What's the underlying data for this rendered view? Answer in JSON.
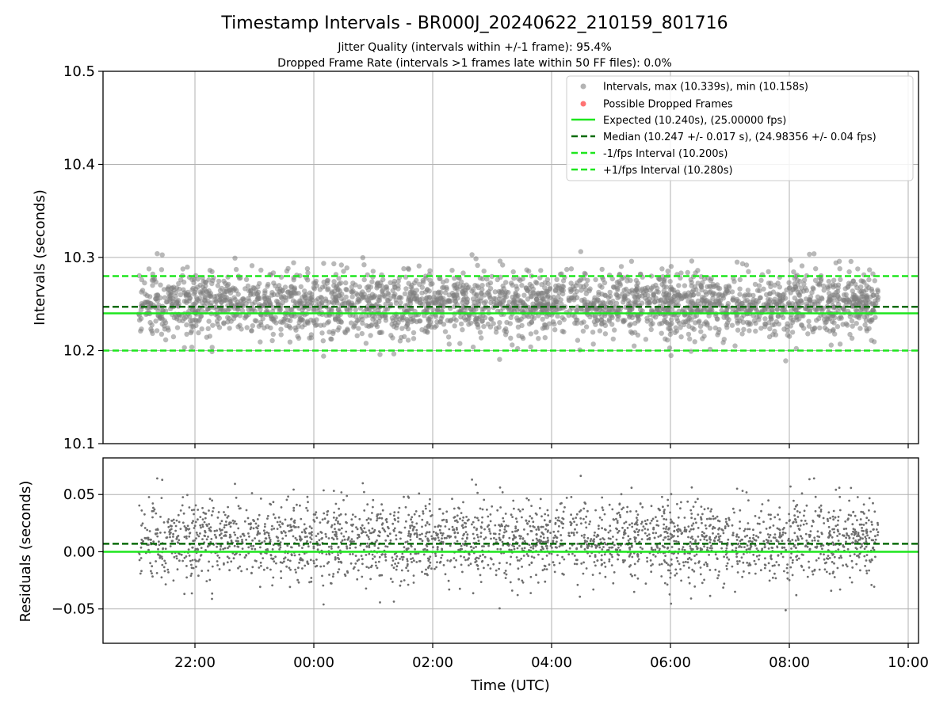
{
  "chart_data": [
    {
      "panel": "top",
      "type": "scatter",
      "title": "Timestamp Intervals - BR000J_20240622_210159_801716",
      "subtitle_1": "Jitter Quality (intervals within +/-1 frame): 95.4%",
      "subtitle_2": "Dropped Frame Rate (intervals >1 frames late within 50 FF files): 0.0%",
      "xlabel": "",
      "ylabel": "Intervals (seconds)",
      "ylim": [
        10.1,
        10.5
      ],
      "yticks": [
        "10.1",
        "10.2",
        "10.3",
        "10.4",
        "10.5"
      ],
      "x_range_hours": [
        "21:00",
        "09:33"
      ],
      "grid": true,
      "legend_position": "top-right",
      "series": [
        {
          "name": "Intervals, max (10.339s), min (10.158s)",
          "kind": "scatter",
          "color": "#808080",
          "max": 10.339,
          "min": 10.158,
          "typical_center": 10.25,
          "typical_spread": 0.02,
          "point_count_est": 2700
        },
        {
          "name": "Possible Dropped Frames",
          "kind": "scatter",
          "color": "#ff5a5a",
          "points": []
        },
        {
          "name": "Expected (10.240s), (25.00000 fps)",
          "kind": "hline",
          "value": 10.24,
          "color": "#1ee61e",
          "style": "solid"
        },
        {
          "name": "Median (10.247 +/- 0.017 s), (24.98356 +/- 0.04 fps)",
          "kind": "hline",
          "value": 10.247,
          "color": "#0b6b0b",
          "style": "dashed"
        },
        {
          "name": "-1/fps Interval (10.200s)",
          "kind": "hline",
          "value": 10.2,
          "color": "#1ee61e",
          "style": "dashed"
        },
        {
          "name": "+1/fps Interval (10.280s)",
          "kind": "hline",
          "value": 10.28,
          "color": "#1ee61e",
          "style": "dashed"
        }
      ]
    },
    {
      "panel": "bottom",
      "type": "scatter",
      "xlabel": "Time (UTC)",
      "ylabel": "Residuals (seconds)",
      "ylim": [
        -0.08,
        0.082
      ],
      "yticks": [
        "−0.05",
        "0.00",
        "0.05"
      ],
      "xticks": [
        "22:00",
        "00:00",
        "02:00",
        "04:00",
        "06:00",
        "08:00",
        "10:00"
      ],
      "grid": true,
      "series": [
        {
          "kind": "scatter",
          "color": "#707070",
          "typical_center": 0.01,
          "typical_spread": 0.02
        },
        {
          "kind": "hline",
          "value": 0.0,
          "color": "#1ee61e",
          "style": "solid"
        },
        {
          "kind": "hline",
          "value": 0.007,
          "color": "#0b6b0b",
          "style": "dashed"
        }
      ]
    }
  ]
}
